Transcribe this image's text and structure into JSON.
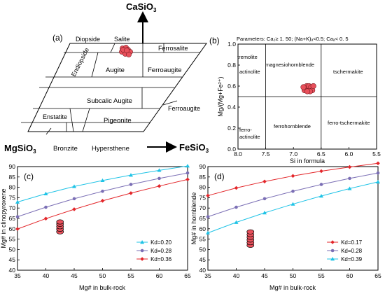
{
  "panel_a": {
    "panel_label": "(a)",
    "top_label": "CaSiO",
    "top_label_sub": "3",
    "left_label": "MgSiO",
    "left_label_sub": "3",
    "right_label": "FeSiO",
    "right_label_sub": "3",
    "fields": {
      "diopside": "Diopside",
      "salite": "Salite",
      "ferrosalite": "Ferrosalite",
      "endiopside": "Endiopside",
      "augite": "Augite",
      "ferroaugite": "Ferroaugite",
      "subcalcic_augite": "Subcalic Augite",
      "ferroaugite_lower": "Ferroaugite",
      "enstatite": "Enstatite",
      "pigeonite": "Pigeonite",
      "bronzite": "Bronzite",
      "hypersthene": "Hypersthene"
    },
    "marker_color": "#e8505b"
  },
  "panel_b": {
    "panel_label": "(b)",
    "parameters": "Parameters: Ca",
    "parameters_full": "Parameters: Ca₂≥ 1. 50; (Na+K)ₐ<0.5; Caₐ< 0. 5",
    "fields": {
      "tremolite": "tremolite",
      "actinolite": "actinolite",
      "magnesiohornblende": "magnesiohornblende",
      "tschermakite": "tschermakite",
      "ferro_actinolite_1": "ferro-",
      "ferro_actinolite_2": "actinolite",
      "ferrohornblende": "ferrohornblende",
      "ferro_tschermakite": "ferro-tschermakite"
    },
    "chart_data": {
      "type": "scatter",
      "xlabel": "Si in formula",
      "ylabel": "Mg/(Mg+Fe²⁺)",
      "xlim": [
        8.0,
        5.5
      ],
      "ylim": [
        0.0,
        1.0
      ],
      "x_ticks": [
        "8.0",
        "7.5",
        "7.0",
        "6.5",
        "6.0",
        "5.5"
      ],
      "y_ticks": [
        "0.0",
        "0.2",
        "0.4",
        "0.6",
        "0.8",
        "1.0"
      ],
      "boundaries_x": [
        7.5,
        6.5
      ],
      "boundary_y": 0.5,
      "points": [
        {
          "x": 6.78,
          "y": 0.58
        },
        {
          "x": 6.74,
          "y": 0.57
        },
        {
          "x": 6.7,
          "y": 0.58
        },
        {
          "x": 6.76,
          "y": 0.6
        },
        {
          "x": 6.72,
          "y": 0.6
        },
        {
          "x": 6.68,
          "y": 0.59
        },
        {
          "x": 6.8,
          "y": 0.56
        },
        {
          "x": 6.66,
          "y": 0.56
        },
        {
          "x": 6.7,
          "y": 0.55
        },
        {
          "x": 6.75,
          "y": 0.55
        },
        {
          "x": 6.82,
          "y": 0.59
        },
        {
          "x": 6.64,
          "y": 0.6
        }
      ],
      "marker_color": "#e8505b"
    }
  },
  "panel_c": {
    "panel_label": "(c)",
    "chart_data": {
      "type": "line",
      "xlabel": "Mg# in bulk-rock",
      "ylabel": "Mg# in clinopyroxene",
      "xlim": [
        35,
        65
      ],
      "ylim": [
        40,
        90
      ],
      "x_ticks": [
        35,
        40,
        45,
        50,
        55,
        60,
        65
      ],
      "y_ticks": [
        40,
        45,
        50,
        55,
        60,
        65,
        70,
        75,
        80,
        85,
        90
      ],
      "legend_position": "bottom-right",
      "series": [
        {
          "name": "Kd=0.20",
          "color": "#1fc3e6",
          "marker": "triangle",
          "x": [
            35,
            40,
            45,
            50,
            55,
            60,
            65
          ],
          "y": [
            72.9,
            76.9,
            80.4,
            83.3,
            85.9,
            88.2,
            90.3
          ]
        },
        {
          "name": "Kd=0.28",
          "color": "#7b6fb5",
          "marker": "circle",
          "x": [
            35,
            40,
            45,
            50,
            55,
            60,
            65
          ],
          "y": [
            65.8,
            70.4,
            74.5,
            78.1,
            81.4,
            84.3,
            86.9
          ]
        },
        {
          "name": "Kd=0.36",
          "color": "#e3262a",
          "marker": "diamond",
          "x": [
            35,
            40,
            45,
            50,
            55,
            60,
            65
          ],
          "y": [
            59.9,
            64.9,
            69.4,
            73.5,
            77.2,
            80.6,
            83.8
          ]
        }
      ],
      "samples": {
        "x": 42.5,
        "y": [
          58.5,
          59.8,
          61.0,
          62.2,
          63.3
        ],
        "color": "#e8505b"
      }
    }
  },
  "panel_d": {
    "panel_label": "(d)",
    "chart_data": {
      "type": "line",
      "xlabel": "Mg# in bulk-rock",
      "ylabel": "Mg# in hornblende",
      "xlim": [
        35,
        65
      ],
      "ylim": [
        40,
        90
      ],
      "x_ticks": [
        35,
        40,
        45,
        50,
        55,
        60,
        65
      ],
      "y_ticks": [
        40,
        45,
        50,
        55,
        60,
        65,
        70,
        75,
        80,
        85,
        90
      ],
      "legend_position": "bottom-right",
      "series": [
        {
          "name": "Kd=0.17",
          "color": "#e3262a",
          "marker": "diamond",
          "x": [
            35,
            40,
            45,
            50,
            55,
            60,
            65
          ],
          "y": [
            76.0,
            79.7,
            82.8,
            85.5,
            87.8,
            89.8,
            91.6
          ]
        },
        {
          "name": "Kd=0.28",
          "color": "#7b6fb5",
          "marker": "circle",
          "x": [
            35,
            40,
            45,
            50,
            55,
            60,
            65
          ],
          "y": [
            65.8,
            70.4,
            74.5,
            78.1,
            81.4,
            84.3,
            86.9
          ]
        },
        {
          "name": "Kd=0.39",
          "color": "#1fc3e6",
          "marker": "triangle",
          "x": [
            35,
            40,
            45,
            50,
            55,
            60,
            65
          ],
          "y": [
            58.0,
            63.1,
            67.7,
            71.9,
            75.8,
            79.4,
            82.6
          ]
        }
      ],
      "samples": {
        "x": 42.5,
        "y": [
          52.0,
          53.3,
          54.6,
          55.9,
          57.2,
          58.5
        ],
        "color": "#e8505b"
      }
    }
  }
}
